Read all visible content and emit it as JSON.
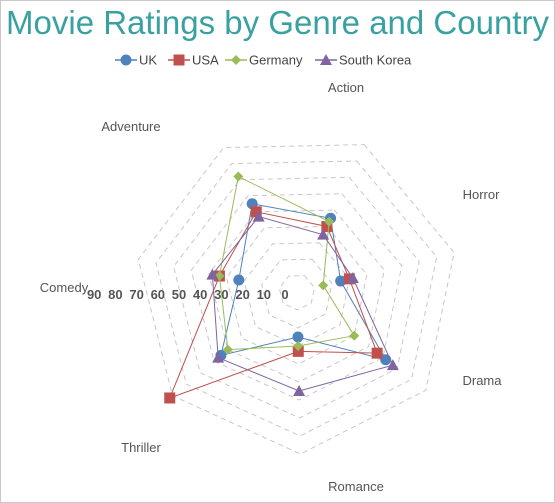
{
  "chart_data": {
    "type": "radar",
    "title": "Movie Ratings by Genre and Country",
    "categories": [
      "Action",
      "Horror",
      "Drama",
      "Romance",
      "Thriller",
      "Comedy",
      "Adventure"
    ],
    "rlim": [
      0,
      90
    ],
    "ticks": [
      90,
      80,
      70,
      60,
      50,
      40,
      30,
      20,
      10,
      0
    ],
    "grid": true,
    "legend": "top",
    "series": [
      {
        "name": "UK",
        "marker": "circle",
        "color": "#4f81bd",
        "values": [
          45,
          25,
          62,
          25,
          55,
          33,
          55
        ]
      },
      {
        "name": "USA",
        "marker": "square",
        "color": "#c0504d",
        "values": [
          40,
          30,
          56,
          33,
          92,
          44,
          50
        ]
      },
      {
        "name": "Germany",
        "marker": "diamond",
        "color": "#9bbb59",
        "values": [
          43,
          15,
          40,
          30,
          50,
          44,
          72
        ]
      },
      {
        "name": "South Korea",
        "marker": "triangle",
        "color": "#8064a2",
        "values": [
          35,
          32,
          67,
          55,
          57,
          48,
          47
        ]
      }
    ]
  }
}
